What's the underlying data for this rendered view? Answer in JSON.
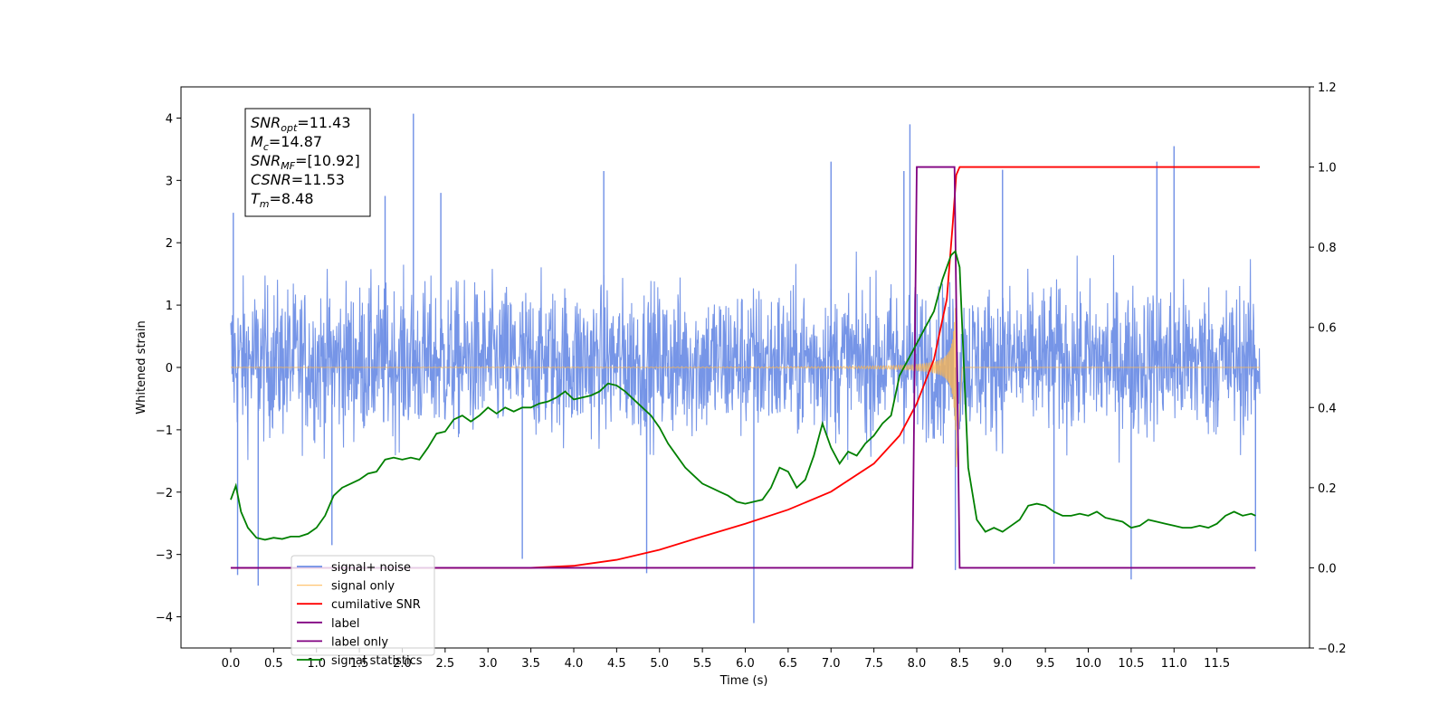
{
  "chart_data": {
    "type": "line",
    "xlabel": "Time (s)",
    "ylabel": "Whitened strain",
    "xlim": [
      -0.58,
      12.58
    ],
    "ylim": [
      -4.5,
      4.5
    ],
    "y2lim": [
      -0.2,
      1.2
    ],
    "x_ticks": [
      0.0,
      0.5,
      1.0,
      1.5,
      2.0,
      2.5,
      3.0,
      3.5,
      4.0,
      4.5,
      5.0,
      5.5,
      6.0,
      6.5,
      7.0,
      7.5,
      8.0,
      8.5,
      9.0,
      9.5,
      10.0,
      10.5,
      11.0,
      11.5
    ],
    "x_tick_labels": [
      "0.0",
      "0.5",
      "1.0",
      "1.5",
      "2.0",
      "2.5",
      "3.0",
      "3.5",
      "4.0",
      "4.5",
      "5.0",
      "5.5",
      "6.0",
      "6.5",
      "7.0",
      "7.5",
      "8.0",
      "8.5",
      "9.0",
      "9.5",
      "10.0",
      "10.5",
      "11.0",
      "11.5"
    ],
    "y_ticks": [
      -4,
      -3,
      -2,
      -1,
      0,
      1,
      2,
      3,
      4
    ],
    "y_tick_labels": [
      "−4",
      "−3",
      "−2",
      "−1",
      "0",
      "1",
      "2",
      "3",
      "4"
    ],
    "y2_ticks": [
      -0.2,
      0.0,
      0.2,
      0.4,
      0.6,
      0.8,
      1.0,
      1.2
    ],
    "y2_tick_labels": [
      "−0.2",
      "0.0",
      "0.2",
      "0.4",
      "0.6",
      "0.8",
      "1.0",
      "1.2"
    ],
    "grid": false,
    "legend_position": "lower-left",
    "series": [
      {
        "name": "signal+ noise",
        "axis": "left",
        "color": "#6f8fe6",
        "noise": {
          "x_start": 0.0,
          "x_end": 12.0,
          "band_low": -2.0,
          "band_high": 2.3
        },
        "spikes": [
          {
            "x": 0.03,
            "y": 2.48
          },
          {
            "x": 0.08,
            "y": -3.33
          },
          {
            "x": 0.32,
            "y": -3.5
          },
          {
            "x": 1.18,
            "y": -2.85
          },
          {
            "x": 1.8,
            "y": 2.75
          },
          {
            "x": 2.13,
            "y": 4.07
          },
          {
            "x": 2.45,
            "y": 2.8
          },
          {
            "x": 3.4,
            "y": -3.07
          },
          {
            "x": 4.35,
            "y": 3.15
          },
          {
            "x": 4.85,
            "y": -3.3
          },
          {
            "x": 6.1,
            "y": -4.1
          },
          {
            "x": 7.0,
            "y": 3.3
          },
          {
            "x": 7.85,
            "y": 3.15
          },
          {
            "x": 7.92,
            "y": 3.9
          },
          {
            "x": 8.45,
            "y": -3.25
          },
          {
            "x": 9.0,
            "y": 3.17
          },
          {
            "x": 9.6,
            "y": -3.15
          },
          {
            "x": 10.5,
            "y": -3.4
          },
          {
            "x": 10.8,
            "y": 3.3
          },
          {
            "x": 11.0,
            "y": 3.55
          },
          {
            "x": 11.95,
            "y": -2.95
          }
        ]
      },
      {
        "name": "signal only",
        "axis": "left",
        "color": "#ffb74d",
        "chirp": {
          "x_start": 0.0,
          "x_end": 8.46,
          "merge_time": 8.48,
          "peak_amplitude": 2.35,
          "tail_end": 12.0
        }
      },
      {
        "name": "cumilative SNR",
        "axis": "right",
        "color": "#ff0000",
        "x": [
          0.0,
          3.5,
          4.0,
          4.5,
          5.0,
          5.5,
          6.0,
          6.5,
          7.0,
          7.5,
          7.8,
          8.0,
          8.2,
          8.35,
          8.42,
          8.46,
          8.5,
          12.0
        ],
        "y": [
          0.0,
          0.0,
          0.005,
          0.02,
          0.045,
          0.078,
          0.11,
          0.145,
          0.19,
          0.26,
          0.33,
          0.41,
          0.52,
          0.67,
          0.86,
          0.98,
          1.0,
          1.0
        ]
      },
      {
        "name": "label",
        "axis": "right",
        "color": "#800080",
        "x": [
          0.0,
          7.95,
          8.0,
          8.44,
          8.5,
          11.95
        ],
        "y": [
          0.0,
          0.0,
          1.0,
          1.0,
          0.0,
          0.0
        ]
      },
      {
        "name": "label only",
        "axis": "right",
        "color": "#800080",
        "hidden": true
      },
      {
        "name": "signal statistics",
        "axis": "right",
        "color": "#008000",
        "x": [
          0.0,
          0.06,
          0.12,
          0.2,
          0.3,
          0.4,
          0.5,
          0.6,
          0.7,
          0.8,
          0.9,
          1.0,
          1.1,
          1.2,
          1.3,
          1.4,
          1.5,
          1.6,
          1.7,
          1.8,
          1.9,
          2.0,
          2.1,
          2.2,
          2.3,
          2.4,
          2.5,
          2.6,
          2.7,
          2.8,
          2.9,
          3.0,
          3.1,
          3.2,
          3.3,
          3.4,
          3.5,
          3.6,
          3.7,
          3.8,
          3.9,
          4.0,
          4.1,
          4.2,
          4.3,
          4.4,
          4.5,
          4.6,
          4.7,
          4.8,
          4.9,
          5.0,
          5.1,
          5.2,
          5.3,
          5.4,
          5.5,
          5.6,
          5.7,
          5.8,
          5.9,
          6.0,
          6.1,
          6.2,
          6.3,
          6.4,
          6.5,
          6.6,
          6.7,
          6.8,
          6.9,
          7.0,
          7.1,
          7.2,
          7.3,
          7.4,
          7.5,
          7.6,
          7.7,
          7.8,
          7.9,
          8.0,
          8.1,
          8.2,
          8.3,
          8.4,
          8.45,
          8.5,
          8.55,
          8.6,
          8.7,
          8.8,
          8.9,
          9.0,
          9.1,
          9.2,
          9.3,
          9.4,
          9.5,
          9.6,
          9.7,
          9.8,
          9.9,
          10.0,
          10.1,
          10.2,
          10.3,
          10.4,
          10.5,
          10.6,
          10.7,
          10.8,
          10.9,
          11.0,
          11.1,
          11.2,
          11.3,
          11.4,
          11.5,
          11.6,
          11.7,
          11.8,
          11.9,
          11.95
        ],
        "y": [
          0.17,
          0.205,
          0.14,
          0.1,
          0.075,
          0.07,
          0.075,
          0.072,
          0.078,
          0.078,
          0.085,
          0.1,
          0.13,
          0.18,
          0.2,
          0.21,
          0.22,
          0.235,
          0.24,
          0.27,
          0.275,
          0.27,
          0.275,
          0.27,
          0.3,
          0.335,
          0.34,
          0.37,
          0.38,
          0.365,
          0.38,
          0.4,
          0.385,
          0.4,
          0.39,
          0.4,
          0.4,
          0.41,
          0.415,
          0.425,
          0.44,
          0.42,
          0.425,
          0.43,
          0.44,
          0.46,
          0.455,
          0.44,
          0.42,
          0.4,
          0.38,
          0.35,
          0.31,
          0.28,
          0.25,
          0.23,
          0.21,
          0.2,
          0.19,
          0.18,
          0.165,
          0.16,
          0.165,
          0.17,
          0.2,
          0.25,
          0.24,
          0.2,
          0.22,
          0.28,
          0.36,
          0.3,
          0.26,
          0.29,
          0.28,
          0.31,
          0.33,
          0.36,
          0.38,
          0.48,
          0.52,
          0.56,
          0.6,
          0.64,
          0.72,
          0.78,
          0.79,
          0.75,
          0.5,
          0.25,
          0.12,
          0.09,
          0.1,
          0.09,
          0.105,
          0.12,
          0.155,
          0.16,
          0.155,
          0.14,
          0.13,
          0.13,
          0.135,
          0.13,
          0.14,
          0.125,
          0.12,
          0.115,
          0.1,
          0.105,
          0.12,
          0.115,
          0.11,
          0.105,
          0.1,
          0.1,
          0.105,
          0.1,
          0.11,
          0.13,
          0.14,
          0.13,
          0.135,
          0.13
        ]
      }
    ],
    "legend": [
      "signal+ noise",
      "signal only",
      "cumilative SNR",
      "label",
      "label only",
      "signal statistics"
    ],
    "annotation_box": {
      "lines": [
        {
          "base": "SNR",
          "sub": "opt",
          "rest": "=11.43"
        },
        {
          "base": "M",
          "sub": "c",
          "rest": "=14.87"
        },
        {
          "base": "SNR",
          "sub": "MF",
          "rest": "=[10.92]"
        },
        {
          "base": "CSNR",
          "sub": "",
          "rest": "=11.53"
        },
        {
          "base": "T",
          "sub": "m",
          "rest": "=8.48"
        }
      ]
    }
  }
}
